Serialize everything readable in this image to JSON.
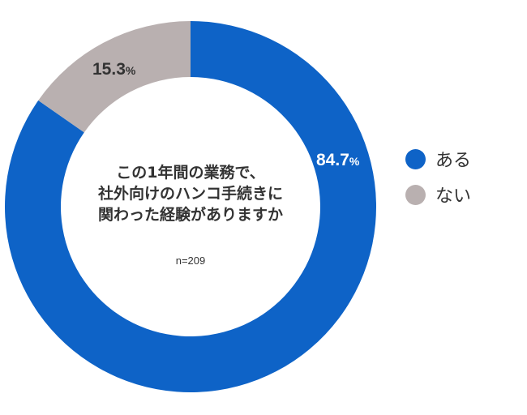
{
  "chart_data": {
    "type": "pie",
    "variant": "donut",
    "title": "この1年間の業務で、社外向けのハンコ手続きに関わった経験がありますか",
    "annotation": "n=209",
    "categories": [
      "ある",
      "ない"
    ],
    "values": [
      84.7,
      15.3
    ],
    "unit": "%",
    "colors": [
      "#0e63c7",
      "#b9b0b0"
    ],
    "legend_position": "right"
  },
  "center": {
    "title_lines": [
      "この1年間の業務で、",
      "社外向けのハンコ手続きに",
      "関わった経験がありますか"
    ],
    "n_label": "n=209"
  },
  "labels": {
    "aru_value": "84.7",
    "nai_value": "15.3",
    "percent_sign": "%"
  },
  "legend": {
    "items": [
      {
        "label": "ある",
        "color": "#0e63c7"
      },
      {
        "label": "ない",
        "color": "#b9b0b0"
      }
    ]
  }
}
